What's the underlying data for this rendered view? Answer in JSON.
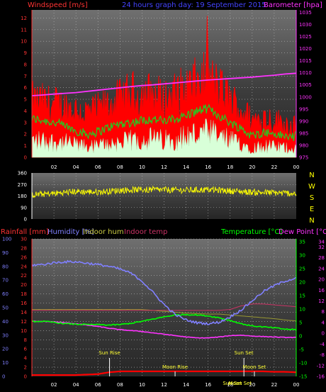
{
  "header": {
    "windspeed_label": "Windspeed [m/s]",
    "graph_title": "24 hours graph day: 19 September 2015",
    "barometer_label": "Barometer [hpa]",
    "rainfall_label": "Rainfall [mm]",
    "humidity_label": "Humidity [%]",
    "indoor_hum_label": "Indoor hum",
    "indoor_temp_label": "Indoor temp",
    "temperature_label": "Temperature [°C]",
    "dew_point_label": "Dew Point [°C]"
  },
  "compass": [
    "N",
    "W",
    "S",
    "E",
    "N"
  ],
  "markers": {
    "sun_rise": "Sun Rise",
    "moon_rise": "Moon Rise",
    "sun_set": "Sun Set",
    "moon_set": "Moon Set",
    "sun_set_small": "Sun Set",
    "moon_set_small": "Moon Set"
  },
  "colors": {
    "wind_gust": "#ff0000",
    "wind_avg": "#22cc22",
    "wind_min": "#d8ffd8",
    "barometer": "#ff33ff",
    "direction": "#ffff00",
    "humidity": "#8080ff",
    "temperature": "#00ff00",
    "dew_point": "#ff33ff",
    "indoor_temp": "#cc3366",
    "indoor_hum": "#999933",
    "rainfall": "#ff0000"
  },
  "chart_data": [
    {
      "type": "line",
      "x_ticks": [
        "02",
        "04",
        "06",
        "08",
        "10",
        "12",
        "14",
        "16",
        "18",
        "20",
        "22",
        "00"
      ],
      "left_axis": {
        "ticks": [
          0,
          1,
          2,
          3,
          4,
          5,
          6,
          7,
          8,
          9,
          10,
          11,
          12
        ],
        "ylim": [
          0,
          12.7
        ]
      },
      "right_axis": {
        "ticks": [
          975,
          980,
          985,
          990,
          995,
          1000,
          1005,
          1010,
          1015,
          1020,
          1025,
          1030,
          1035
        ],
        "ylim": [
          975,
          1036
        ]
      },
      "hours": [
        0,
        1,
        2,
        3,
        4,
        5,
        6,
        7,
        8,
        9,
        10,
        11,
        12,
        13,
        14,
        15,
        16,
        17,
        18,
        19,
        20,
        21,
        22,
        23,
        24
      ],
      "series": [
        {
          "role": "gust",
          "values": [
            5.3,
            5.2,
            5.0,
            4.8,
            4.5,
            4.2,
            4.5,
            5.0,
            5.5,
            6.0,
            6.0,
            6.0,
            5.5,
            6.0,
            6.5,
            7.0,
            7.5,
            6.5,
            5.5,
            4.5,
            3.5,
            3.8,
            3.5,
            3.2,
            3.0
          ],
          "peak": 12.2
        },
        {
          "role": "average",
          "values": [
            3.3,
            3.2,
            3.0,
            2.7,
            2.3,
            2.0,
            2.2,
            2.6,
            2.9,
            3.0,
            3.2,
            3.3,
            3.1,
            3.3,
            3.6,
            4.0,
            4.2,
            3.6,
            3.0,
            2.5,
            1.8,
            2.2,
            2.0,
            1.8,
            1.8
          ]
        },
        {
          "role": "minimum",
          "values": [
            1.6,
            1.6,
            1.5,
            1.4,
            1.2,
            1.0,
            1.1,
            1.3,
            1.4,
            1.6,
            1.7,
            1.8,
            1.6,
            1.8,
            2.0,
            2.2,
            2.3,
            2.0,
            1.6,
            1.3,
            0.9,
            1.1,
            1.0,
            0.9,
            0.9
          ]
        },
        {
          "role": "barometer",
          "values": [
            1000.5,
            1000.8,
            1001.2,
            1001.5,
            1001.8,
            1002.3,
            1002.8,
            1003.3,
            1003.8,
            1004.3,
            1004.7,
            1005.0,
            1005.4,
            1005.8,
            1006.2,
            1006.6,
            1007.0,
            1007.3,
            1007.6,
            1007.9,
            1008.2,
            1008.6,
            1009.0,
            1009.5,
            1009.8
          ]
        }
      ]
    },
    {
      "type": "scatter",
      "y_ticks": [
        0,
        90,
        180,
        270,
        360
      ],
      "ylim": [
        0,
        360
      ],
      "hours": [
        0,
        2,
        4,
        6,
        8,
        10,
        12,
        14,
        16,
        18,
        20,
        22,
        24
      ],
      "series": [
        {
          "role": "direction",
          "values": [
            190,
            200,
            215,
            210,
            225,
            230,
            228,
            225,
            230,
            220,
            210,
            205,
            200
          ]
        }
      ]
    },
    {
      "type": "line",
      "x_ticks": [
        "02",
        "04",
        "06",
        "08",
        "10",
        "12",
        "14",
        "16",
        "18",
        "20",
        "22",
        "00"
      ],
      "rainfall_axis": {
        "ticks": [
          0,
          2,
          4,
          6,
          8,
          10,
          12,
          14,
          16,
          18,
          20,
          22,
          24,
          26,
          28,
          30
        ],
        "ylim": [
          0,
          30
        ]
      },
      "humidity_axis": {
        "ticks": [
          0,
          10,
          20,
          30,
          40,
          50,
          60,
          70,
          80,
          90,
          100
        ]
      },
      "temperature_axis": {
        "ticks": [
          -15,
          -10,
          -5,
          0,
          5,
          10,
          15,
          20,
          25,
          30,
          35
        ],
        "ylim": [
          -15,
          36
        ]
      },
      "dew_axis": {
        "ticks": [
          -16,
          -12,
          -8,
          -4,
          0,
          4,
          8,
          12,
          16,
          20,
          24,
          28,
          32,
          34
        ]
      },
      "hours": [
        0,
        1,
        2,
        3,
        4,
        5,
        6,
        7,
        8,
        9,
        10,
        11,
        12,
        13,
        14,
        15,
        16,
        17,
        18,
        19,
        20,
        21,
        22,
        23,
        24
      ],
      "series": [
        {
          "role": "humidity",
          "values": [
            24.3,
            24.4,
            24.8,
            25.0,
            25.0,
            24.7,
            24.4,
            24.0,
            23.4,
            22.5,
            20.8,
            18.3,
            15.7,
            13.5,
            12.3,
            11.7,
            11.5,
            11.8,
            13.0,
            14.5,
            16.5,
            18.5,
            19.8,
            20.8,
            21.5
          ]
        },
        {
          "role": "temperature",
          "values": [
            12.0,
            12.0,
            11.8,
            11.5,
            11.4,
            11.3,
            11.3,
            11.2,
            11.3,
            11.6,
            12.0,
            12.5,
            13.0,
            13.4,
            13.5,
            13.4,
            13.2,
            12.8,
            12.2,
            11.5,
            11.0,
            10.8,
            10.6,
            10.3,
            10.2
          ]
        },
        {
          "role": "dew_point",
          "values": [
            12.0,
            12.0,
            11.9,
            11.7,
            11.5,
            11.2,
            10.9,
            10.5,
            10.2,
            10.0,
            9.8,
            9.5,
            9.2,
            8.9,
            8.6,
            8.4,
            8.4,
            8.6,
            8.9,
            9.0,
            8.8,
            8.7,
            8.6,
            8.5,
            8.5
          ]
        },
        {
          "role": "indoor_temp",
          "values": [
            14.4,
            14.4,
            14.4,
            14.4,
            14.4,
            14.4,
            14.4,
            14.4,
            14.4,
            14.4,
            14.4,
            14.4,
            14.4,
            14.4,
            14.4,
            14.4,
            14.4,
            14.4,
            14.6,
            15.4,
            15.8,
            15.8,
            15.6,
            15.4,
            15.2
          ]
        },
        {
          "role": "indoor_hum",
          "values": [
            14.6,
            14.6,
            14.6,
            14.6,
            14.6,
            14.6,
            14.6,
            14.6,
            14.6,
            14.6,
            14.6,
            14.4,
            14.2,
            14.0,
            13.8,
            13.7,
            13.6,
            13.6,
            13.4,
            13.2,
            13.0,
            12.8,
            12.6,
            12.3,
            12.1
          ]
        },
        {
          "role": "rainfall",
          "values": [
            0.3,
            0.3,
            0.3,
            0.3,
            0.3,
            0.4,
            0.5,
            0.9,
            1.1,
            1.1,
            1.1,
            1.1,
            1.1,
            1.1,
            1.1,
            1.1,
            1.1,
            1.1,
            1.1,
            1.1,
            1.1,
            1.1,
            1.0,
            1.0,
            0.9
          ]
        }
      ]
    }
  ]
}
